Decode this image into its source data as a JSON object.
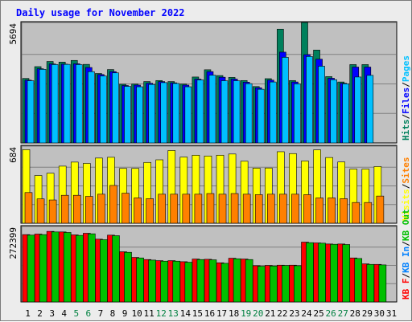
{
  "chart_data": {
    "type": "bar",
    "title": "Daily usage for November 2022",
    "colors": {
      "background": "#c0c0c0",
      "hits": "#00805c",
      "files": "#0000ff",
      "pages": "#00c0ff",
      "visits": "#ffff00",
      "sites": "#ff8000",
      "kb_in": "#0080ff",
      "kb_out": "#00c000",
      "kb_f": "#ff0000",
      "weekend_label": "#008040",
      "weekday_label": "#000000",
      "title": "#0000ff"
    },
    "days": [
      "1",
      "2",
      "3",
      "4",
      "5",
      "6",
      "7",
      "8",
      "9",
      "10",
      "11",
      "12",
      "13",
      "14",
      "15",
      "16",
      "17",
      "18",
      "19",
      "20",
      "21",
      "22",
      "23",
      "24",
      "25",
      "26",
      "27",
      "28",
      "29",
      "30",
      "31"
    ],
    "weekend_days": [
      "5",
      "6",
      "12",
      "13",
      "19",
      "20",
      "26",
      "27"
    ],
    "panels": [
      {
        "name": "hits-files-pages",
        "ymax_label": "5694",
        "ymax": 5694,
        "legend": [
          {
            "text": "Hits",
            "color": "#00805c"
          },
          {
            "text": "/",
            "color": "#000000"
          },
          {
            "text": "Files",
            "color": "#0000ff"
          },
          {
            "text": "/",
            "color": "#000000"
          },
          {
            "text": "Pages",
            "color": "#00c0ff"
          }
        ],
        "series": [
          {
            "name": "Hits",
            "color": "#00805c",
            "values": [
              3110,
              3680,
              3930,
              3900,
              3980,
              3790,
              3350,
              3540,
              2830,
              2840,
              2960,
              3010,
              2960,
              2840,
              3180,
              3530,
              3250,
              3160,
              3010,
              2720,
              3100,
              5490,
              3010,
              5810,
              4480,
              3200,
              2940,
              3780,
              3780,
              null,
              null
            ]
          },
          {
            "name": "Files",
            "color": "#0000ff",
            "values": [
              3030,
              3580,
              3810,
              3800,
              3820,
              3640,
              3300,
              3440,
              2770,
              2790,
              2880,
              2960,
              2900,
              2790,
              3080,
              3440,
              3170,
              3080,
              2930,
              2660,
              3030,
              4380,
              2940,
              4260,
              4040,
              3120,
              2880,
              3660,
              3660,
              null,
              null
            ]
          },
          {
            "name": "Pages",
            "color": "#00c0ff",
            "values": [
              3000,
              3550,
              3780,
              3790,
              3780,
              3440,
              3230,
              3380,
              2730,
              2710,
              2820,
              2910,
              2870,
              2710,
              3040,
              3270,
              3000,
              3000,
              2860,
              2590,
              2940,
              4130,
              2850,
              4170,
              3700,
              3050,
              2850,
              3180,
              3260,
              null,
              null
            ]
          }
        ]
      },
      {
        "name": "visits-sites",
        "ymax_label": "684",
        "ymax": 684,
        "legend": [
          {
            "text": "Visits",
            "color": "#ffff00"
          },
          {
            "text": "/",
            "color": "#000000"
          },
          {
            "text": "Sites",
            "color": "#ff8000"
          }
        ],
        "series": [
          {
            "name": "Visits",
            "color": "#ffff00",
            "values": [
              674,
              437,
              458,
              523,
              560,
              548,
              597,
              604,
              502,
              502,
              557,
              581,
              666,
              606,
              623,
              616,
              623,
              634,
              568,
              505,
              506,
              655,
              638,
              570,
              672,
              602,
              561,
              496,
              496,
              519,
              null
            ]
          },
          {
            "name": "Sites",
            "color": "#ff8000",
            "values": [
              281,
              223,
              213,
              256,
              256,
              246,
              266,
              346,
              275,
              232,
              225,
              266,
              266,
              266,
              266,
              272,
              266,
              272,
              266,
              262,
              266,
              266,
              266,
              262,
              232,
              232,
              225,
              190,
              190,
              249,
              null
            ]
          }
        ]
      },
      {
        "name": "kbytes",
        "ymax_label": "272399",
        "ymax": 272399,
        "legend": [
          {
            "text": "KB F",
            "color": "#ff0000"
          },
          {
            "text": "/",
            "color": "#000000"
          },
          {
            "text": "KB In",
            "color": "#0080ff"
          },
          {
            "text": "/",
            "color": "#000000"
          },
          {
            "text": "KB Out",
            "color": "#00c000"
          }
        ],
        "series": [
          {
            "name": "KB F",
            "color": "#ff0000",
            "values": [
              251000,
              253000,
              263000,
              261000,
              250000,
              256000,
              234000,
              249000,
              187000,
              166000,
              158000,
              154000,
              154000,
              150000,
              160000,
              159000,
              146000,
              163000,
              160000,
              135000,
              136000,
              137000,
              137000,
              223000,
              220000,
              216000,
              216000,
              164000,
              142000,
              140000,
              null
            ]
          },
          {
            "name": "KB In",
            "color": "#0080ff",
            "values": [
              null,
              null,
              null,
              null,
              null,
              null,
              null,
              null,
              null,
              null,
              null,
              null,
              null,
              null,
              null,
              null,
              null,
              null,
              null,
              null,
              null,
              null,
              null,
              null,
              null,
              null,
              null,
              null,
              null,
              null,
              null
            ]
          },
          {
            "name": "KB Out",
            "color": "#00c000",
            "values": [
              249000,
              251000,
              261000,
              259000,
              248000,
              254000,
              232000,
              247000,
              185000,
              164000,
              156000,
              152000,
              152000,
              148000,
              158000,
              157000,
              144000,
              161000,
              158000,
              133000,
              134000,
              136000,
              135000,
              221000,
              219000,
              215000,
              214000,
              162000,
              140000,
              138000,
              null
            ]
          }
        ]
      }
    ]
  }
}
